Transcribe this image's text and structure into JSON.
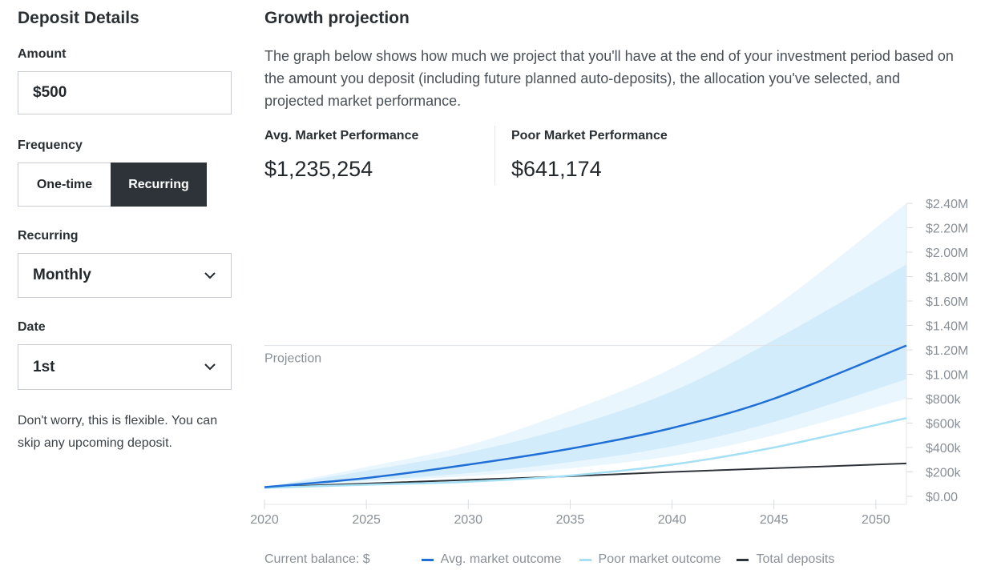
{
  "deposit": {
    "title": "Deposit Details",
    "amount_label": "Amount",
    "amount_value": "$500",
    "frequency_label": "Frequency",
    "frequency_options": [
      "One-time",
      "Recurring"
    ],
    "frequency_selected": "Recurring",
    "recurring_label": "Recurring",
    "recurring_value": "Monthly",
    "date_label": "Date",
    "date_value": "1st",
    "note": "Don't worry, this is flexible. You can skip any upcoming deposit."
  },
  "growth": {
    "title": "Growth projection",
    "description": "The graph below shows how much we project that you'll have at the end of your investment period based on the amount you deposit (including future planned auto-deposits), the allocation you've selected, and projected market performance.",
    "avg_label": "Avg. Market Performance",
    "avg_value": "$1,235,254",
    "poor_label": "Poor Market Performance",
    "poor_value": "$641,174"
  },
  "colors": {
    "avg_line": "#1f6fd6",
    "poor_line": "#a6e0f5",
    "deposits_line": "#2d3339",
    "band_outer": "#eaf6fd",
    "band_inner": "#d3ecfc"
  },
  "chart_data": {
    "type": "line",
    "annotation": "Projection",
    "x_ticks": [
      "2020",
      "2025",
      "2030",
      "2035",
      "2040",
      "2045",
      "2050"
    ],
    "y_ticks": [
      "$0.00",
      "$200k",
      "$400k",
      "$600k",
      "$800k",
      "$1.00M",
      "$1.20M",
      "$1.40M",
      "$1.60M",
      "$1.80M",
      "$2.00M",
      "$2.20M",
      "$2.40M"
    ],
    "xlim": [
      2020,
      2051.5
    ],
    "ylim": [
      0,
      2400000
    ],
    "x": [
      2020,
      2025,
      2030,
      2035,
      2040,
      2045,
      2051.5
    ],
    "series": [
      {
        "name": "Avg. market outcome",
        "values": [
          75000,
          150000,
          260000,
          390000,
          560000,
          800000,
          1235254
        ]
      },
      {
        "name": "Poor market outcome",
        "values": [
          70000,
          95000,
          120000,
          170000,
          260000,
          400000,
          641174
        ]
      },
      {
        "name": "Total deposits",
        "values": [
          75000,
          105000,
          135000,
          165000,
          200000,
          230000,
          270000
        ]
      }
    ],
    "bands": [
      {
        "lower": [
          75000,
          120000,
          165000,
          230000,
          330000,
          500000,
          800000
        ],
        "upper": [
          75000,
          240000,
          420000,
          700000,
          1050000,
          1550000,
          2400000
        ]
      },
      {
        "lower": [
          75000,
          130000,
          190000,
          280000,
          410000,
          610000,
          960000
        ],
        "upper": [
          75000,
          210000,
          360000,
          570000,
          860000,
          1280000,
          1900000
        ]
      }
    ],
    "legend": {
      "prefix": "Current balance: $",
      "items": [
        "Avg. market outcome",
        "Poor market outcome",
        "Total deposits"
      ]
    }
  }
}
